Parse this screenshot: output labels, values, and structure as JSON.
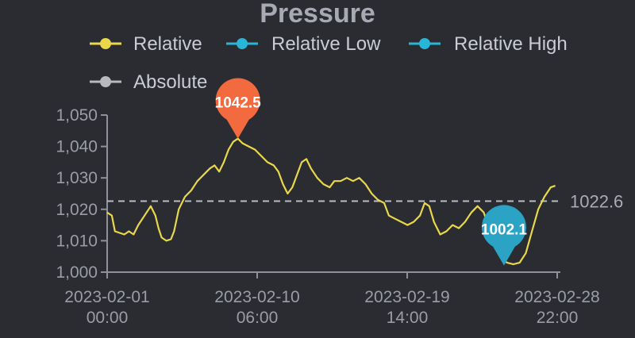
{
  "chart_data": {
    "type": "line",
    "title": "Pressure",
    "legend": [
      {
        "name": "Relative",
        "color": "#e8d84a"
      },
      {
        "name": "Relative Low",
        "color": "#29b6d6"
      },
      {
        "name": "Relative High",
        "color": "#29b6d6"
      },
      {
        "name": "Absolute",
        "color": "#b7b9be"
      }
    ],
    "x_ticks": [
      {
        "line1": "2023-02-01",
        "line2": "00:00"
      },
      {
        "line1": "2023-02-10",
        "line2": "06:00"
      },
      {
        "line1": "2023-02-19",
        "line2": "14:00"
      },
      {
        "line1": "2023-02-28",
        "line2": "22:00"
      }
    ],
    "x_range_days": [
      0,
      28.92
    ],
    "y_ticks": [
      "1,000",
      "1,010",
      "1,020",
      "1,030",
      "1,040",
      "1,050"
    ],
    "ylim": [
      1000,
      1050
    ],
    "reference_line": {
      "value": 1022.6,
      "label": "1022.6"
    },
    "annotations": [
      {
        "label": "1042.5",
        "x_days": 8.4,
        "value": 1042.5,
        "color": "#f26a3d"
      },
      {
        "label": "1002.1",
        "x_days": 25.5,
        "value": 1002.1,
        "color": "#2aa3c4"
      }
    ],
    "series": [
      {
        "name": "Relative",
        "color": "#e8d84a",
        "points": [
          [
            0,
            1019
          ],
          [
            0.3,
            1018
          ],
          [
            0.5,
            1013
          ],
          [
            0.8,
            1012.5
          ],
          [
            1.1,
            1012
          ],
          [
            1.4,
            1013
          ],
          [
            1.7,
            1012
          ],
          [
            2.0,
            1015
          ],
          [
            2.4,
            1018
          ],
          [
            2.8,
            1021
          ],
          [
            3.1,
            1018
          ],
          [
            3.3,
            1014
          ],
          [
            3.5,
            1011
          ],
          [
            3.8,
            1010
          ],
          [
            4.1,
            1010.5
          ],
          [
            4.3,
            1013
          ],
          [
            4.6,
            1020
          ],
          [
            5.0,
            1024
          ],
          [
            5.4,
            1026
          ],
          [
            5.8,
            1029
          ],
          [
            6.2,
            1031
          ],
          [
            6.6,
            1033
          ],
          [
            6.9,
            1034
          ],
          [
            7.2,
            1032
          ],
          [
            7.5,
            1035
          ],
          [
            7.8,
            1039
          ],
          [
            8.1,
            1041.5
          ],
          [
            8.4,
            1042.5
          ],
          [
            8.7,
            1041
          ],
          [
            9.1,
            1040
          ],
          [
            9.5,
            1039
          ],
          [
            9.9,
            1037
          ],
          [
            10.3,
            1035
          ],
          [
            10.7,
            1034
          ],
          [
            11.0,
            1032
          ],
          [
            11.3,
            1028
          ],
          [
            11.6,
            1025
          ],
          [
            11.9,
            1027
          ],
          [
            12.2,
            1031
          ],
          [
            12.5,
            1035
          ],
          [
            12.8,
            1036
          ],
          [
            13.1,
            1033
          ],
          [
            13.5,
            1030
          ],
          [
            13.9,
            1028
          ],
          [
            14.3,
            1027
          ],
          [
            14.6,
            1029
          ],
          [
            15.0,
            1029
          ],
          [
            15.4,
            1030
          ],
          [
            15.8,
            1029
          ],
          [
            16.2,
            1030
          ],
          [
            16.6,
            1028
          ],
          [
            17.0,
            1025
          ],
          [
            17.4,
            1023
          ],
          [
            17.8,
            1022
          ],
          [
            18.1,
            1018
          ],
          [
            18.5,
            1017
          ],
          [
            18.9,
            1016
          ],
          [
            19.3,
            1015
          ],
          [
            19.7,
            1016
          ],
          [
            20.1,
            1018
          ],
          [
            20.4,
            1022
          ],
          [
            20.7,
            1021
          ],
          [
            21.0,
            1016
          ],
          [
            21.4,
            1012
          ],
          [
            21.8,
            1013
          ],
          [
            22.2,
            1015
          ],
          [
            22.6,
            1014
          ],
          [
            23.0,
            1016
          ],
          [
            23.4,
            1019
          ],
          [
            23.8,
            1021
          ],
          [
            24.2,
            1019
          ],
          [
            24.6,
            1013
          ],
          [
            25.0,
            1008
          ],
          [
            25.4,
            1004
          ],
          [
            25.7,
            1003
          ],
          [
            26.1,
            1002.5
          ],
          [
            26.5,
            1003
          ],
          [
            26.9,
            1006
          ],
          [
            27.3,
            1013
          ],
          [
            27.7,
            1020
          ],
          [
            28.1,
            1024
          ],
          [
            28.5,
            1027
          ],
          [
            28.8,
            1027.5
          ]
        ]
      }
    ]
  }
}
